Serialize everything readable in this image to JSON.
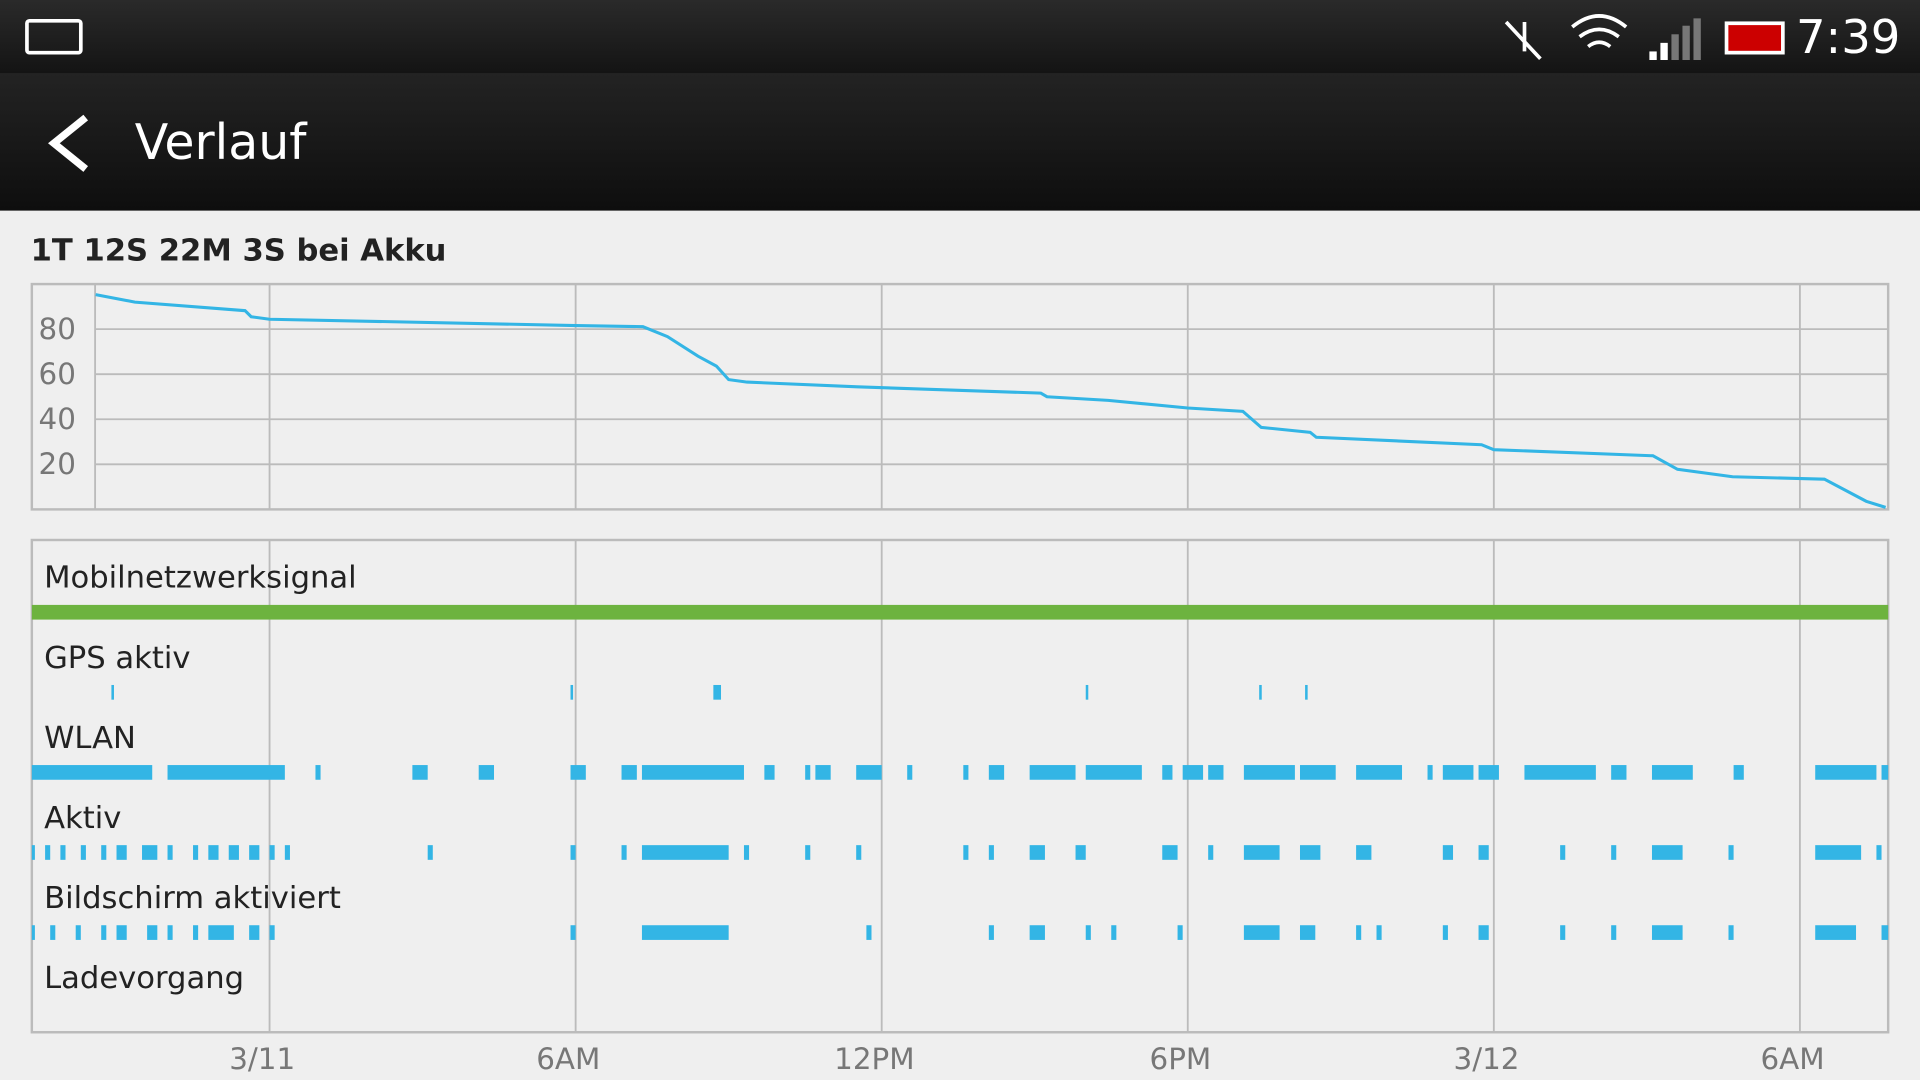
{
  "status_bar": {
    "time": "7:39"
  },
  "action_bar": {
    "title": "Verlauf"
  },
  "chart_data": {
    "type": "line",
    "title": "1T 12S 22M 3S bei Akku",
    "x": [
      -3.41,
      -2.64,
      -0.48,
      -0.36,
      0,
      6,
      7.32,
      7.8,
      8.4,
      8.76,
      9,
      9.36,
      11.52,
      15.12,
      15.24,
      16.44,
      18,
      19.08,
      19.44,
      20.4,
      20.52,
      23.76,
      24,
      27.12,
      27.6,
      28.68,
      30.48,
      31.3,
      31.68
    ],
    "series": [
      {
        "color": "#33b5e5",
        "values": [
          95.3,
          92,
          88.2,
          85.5,
          84.4,
          81.6,
          81.1,
          76.7,
          68,
          63.6,
          57.6,
          56.5,
          54.4,
          51.6,
          50,
          48.4,
          45,
          43.5,
          36.4,
          34.2,
          32,
          28.7,
          26.5,
          23.8,
          17.8,
          14.5,
          13.4,
          3.6,
          0.9
        ]
      }
    ],
    "xlim": [
      -3.42,
      31.73
    ],
    "ylim": [
      0,
      100
    ],
    "yticks": [
      20,
      40,
      60,
      80
    ],
    "xticks": [
      {
        "value": 0,
        "label": "3/11"
      },
      {
        "value": 6,
        "label": "6AM"
      },
      {
        "value": 12,
        "label": "12PM"
      },
      {
        "value": 18,
        "label": "6PM"
      },
      {
        "value": 24,
        "label": "3/12"
      },
      {
        "value": 30,
        "label": "6AM"
      }
    ],
    "grid": true,
    "timeline": {
      "xlim": [
        -4.66,
        31.73
      ],
      "rows": [
        {
          "name": "Mobilnetzwerksignal",
          "color": "#6db33f",
          "intervals": [
            [
              -4.66,
              31.73
            ]
          ]
        },
        {
          "name": "GPS aktiv",
          "color": "#33b5e5",
          "intervals": [
            [
              -3.1,
              -3.05
            ],
            [
              5.9,
              5.95
            ],
            [
              8.7,
              8.85
            ],
            [
              16.0,
              16.05
            ],
            [
              19.4,
              19.45
            ],
            [
              20.3,
              20.35
            ]
          ]
        },
        {
          "name": "WLAN",
          "color": "#33b5e5",
          "intervals": [
            [
              -4.66,
              -2.3
            ],
            [
              -2.0,
              0.3
            ],
            [
              0.9,
              1.0
            ],
            [
              2.8,
              3.1
            ],
            [
              4.1,
              4.4
            ],
            [
              5.9,
              6.2
            ],
            [
              6.9,
              7.2
            ],
            [
              7.3,
              9.3
            ],
            [
              9.7,
              9.9
            ],
            [
              10.5,
              10.6
            ],
            [
              10.7,
              11.0
            ],
            [
              11.5,
              12.0
            ],
            [
              12.5,
              12.6
            ],
            [
              13.6,
              13.7
            ],
            [
              14.1,
              14.4
            ],
            [
              14.9,
              15.8
            ],
            [
              16.0,
              17.1
            ],
            [
              17.5,
              17.7
            ],
            [
              17.9,
              18.3
            ],
            [
              18.4,
              18.7
            ],
            [
              19.1,
              20.1
            ],
            [
              20.2,
              20.9
            ],
            [
              21.3,
              22.2
            ],
            [
              22.7,
              22.8
            ],
            [
              23.0,
              23.6
            ],
            [
              23.7,
              24.1
            ],
            [
              24.6,
              26.0
            ],
            [
              26.3,
              26.6
            ],
            [
              27.1,
              27.9
            ],
            [
              28.7,
              28.9
            ],
            [
              30.3,
              31.5
            ],
            [
              31.6,
              31.73
            ]
          ]
        },
        {
          "name": "Aktiv",
          "color": "#33b5e5",
          "intervals": [
            [
              -4.66,
              -4.6
            ],
            [
              -4.4,
              -4.3
            ],
            [
              -4.1,
              -4.0
            ],
            [
              -3.7,
              -3.6
            ],
            [
              -3.3,
              -3.2
            ],
            [
              -3.0,
              -2.8
            ],
            [
              -2.5,
              -2.2
            ],
            [
              -2.0,
              -1.9
            ],
            [
              -1.5,
              -1.4
            ],
            [
              -1.2,
              -1.0
            ],
            [
              -0.8,
              -0.6
            ],
            [
              -0.4,
              -0.2
            ],
            [
              0.0,
              0.1
            ],
            [
              0.3,
              0.4
            ],
            [
              3.1,
              3.2
            ],
            [
              5.9,
              6.0
            ],
            [
              6.9,
              7.0
            ],
            [
              7.3,
              9.0
            ],
            [
              9.3,
              9.4
            ],
            [
              10.5,
              10.6
            ],
            [
              11.5,
              11.6
            ],
            [
              13.6,
              13.7
            ],
            [
              14.1,
              14.2
            ],
            [
              14.9,
              15.2
            ],
            [
              15.8,
              16.0
            ],
            [
              17.5,
              17.8
            ],
            [
              18.4,
              18.5
            ],
            [
              19.1,
              19.8
            ],
            [
              20.2,
              20.6
            ],
            [
              21.3,
              21.6
            ],
            [
              23.0,
              23.2
            ],
            [
              23.7,
              23.9
            ],
            [
              25.3,
              25.4
            ],
            [
              26.3,
              26.4
            ],
            [
              27.1,
              27.7
            ],
            [
              28.6,
              28.7
            ],
            [
              30.3,
              31.2
            ],
            [
              31.5,
              31.6
            ]
          ]
        },
        {
          "name": "Bildschirm aktiviert",
          "color": "#33b5e5",
          "intervals": [
            [
              -4.66,
              -4.6
            ],
            [
              -4.3,
              -4.2
            ],
            [
              -3.8,
              -3.7
            ],
            [
              -3.3,
              -3.2
            ],
            [
              -3.0,
              -2.8
            ],
            [
              -2.4,
              -2.2
            ],
            [
              -2.0,
              -1.9
            ],
            [
              -1.5,
              -1.4
            ],
            [
              -1.2,
              -0.7
            ],
            [
              -0.4,
              -0.2
            ],
            [
              0.0,
              0.1
            ],
            [
              5.9,
              6.0
            ],
            [
              7.3,
              9.0
            ],
            [
              11.7,
              11.8
            ],
            [
              14.1,
              14.2
            ],
            [
              14.9,
              15.2
            ],
            [
              16.0,
              16.1
            ],
            [
              16.5,
              16.6
            ],
            [
              17.8,
              17.9
            ],
            [
              19.1,
              19.8
            ],
            [
              20.2,
              20.5
            ],
            [
              21.3,
              21.4
            ],
            [
              21.7,
              21.8
            ],
            [
              23.0,
              23.1
            ],
            [
              23.7,
              23.9
            ],
            [
              25.3,
              25.4
            ],
            [
              26.3,
              26.4
            ],
            [
              27.1,
              27.7
            ],
            [
              28.6,
              28.7
            ],
            [
              30.3,
              31.1
            ],
            [
              31.6,
              31.73
            ]
          ]
        },
        {
          "name": "Ladevorgang",
          "color": "#33b5e5",
          "intervals": []
        }
      ]
    }
  }
}
